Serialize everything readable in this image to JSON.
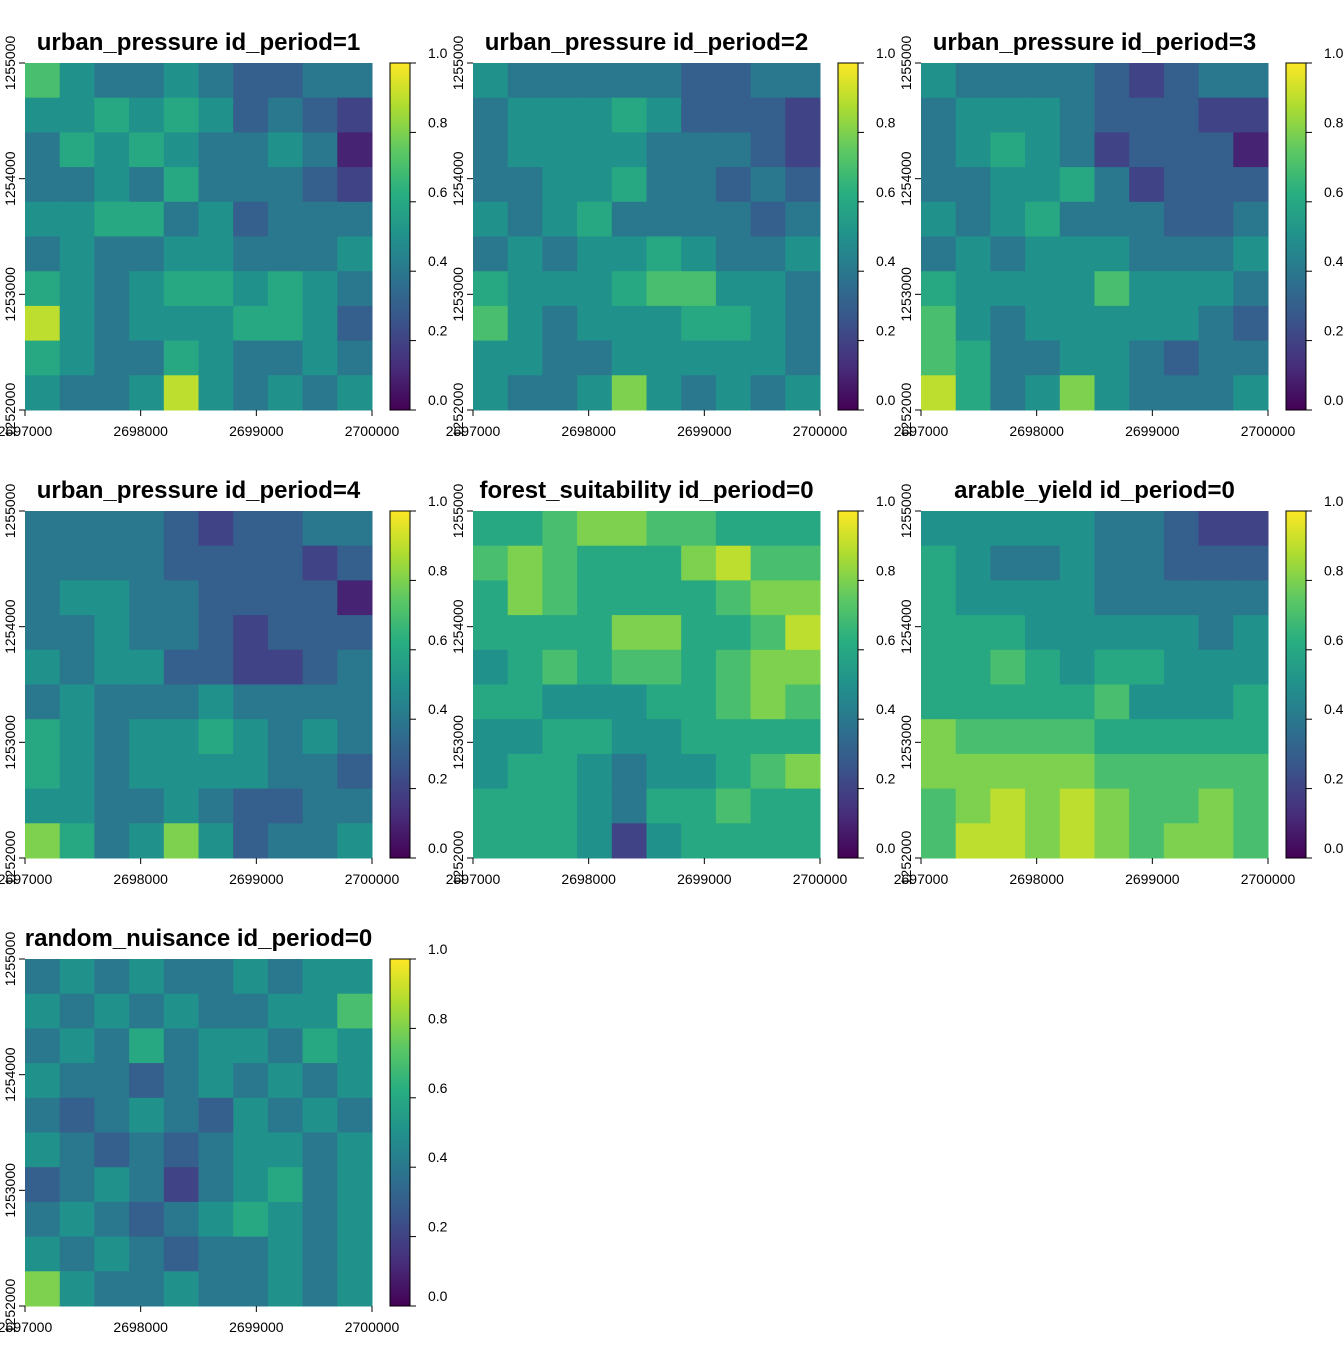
{
  "chart_data": [
    {
      "type": "heatmap",
      "title": "urban_pressure id_period=1",
      "colormap": "viridis",
      "xlim": [
        2697000,
        2700000
      ],
      "ylim": [
        1252000,
        1255000
      ],
      "xticks": [
        2697000,
        2698000,
        2699000,
        2700000
      ],
      "yticks": [
        1252000,
        1253000,
        1254000,
        1255000
      ],
      "zlim": [
        0,
        1
      ],
      "zticks": [
        {
          "value": 0,
          "label": "0.0"
        },
        0.2,
        0.4,
        0.6,
        0.8,
        {
          "value": 1,
          "label": "1.0"
        }
      ],
      "values": [
        [
          0.7,
          0.5,
          0.4,
          0.4,
          0.5,
          0.4,
          0.3,
          0.3,
          0.4,
          0.4
        ],
        [
          0.5,
          0.5,
          0.6,
          0.5,
          0.6,
          0.5,
          0.3,
          0.4,
          0.3,
          0.2
        ],
        [
          0.4,
          0.6,
          0.5,
          0.6,
          0.5,
          0.4,
          0.4,
          0.5,
          0.4,
          0.1
        ],
        [
          0.4,
          0.4,
          0.5,
          0.4,
          0.6,
          0.4,
          0.4,
          0.4,
          0.3,
          0.2
        ],
        [
          0.5,
          0.5,
          0.6,
          0.6,
          0.4,
          0.5,
          0.3,
          0.4,
          0.4,
          0.4
        ],
        [
          0.4,
          0.5,
          0.4,
          0.4,
          0.5,
          0.5,
          0.4,
          0.4,
          0.4,
          0.5
        ],
        [
          0.6,
          0.5,
          0.4,
          0.5,
          0.6,
          0.6,
          0.5,
          0.6,
          0.5,
          0.4
        ],
        [
          0.9,
          0.5,
          0.4,
          0.5,
          0.5,
          0.5,
          0.6,
          0.6,
          0.5,
          0.3
        ],
        [
          0.6,
          0.5,
          0.4,
          0.4,
          0.6,
          0.5,
          0.4,
          0.4,
          0.5,
          0.4
        ],
        [
          0.5,
          0.4,
          0.4,
          0.5,
          0.9,
          0.5,
          0.4,
          0.5,
          0.4,
          0.5
        ]
      ]
    },
    {
      "type": "heatmap",
      "title": "urban_pressure id_period=2",
      "colormap": "viridis",
      "xlim": [
        2697000,
        2700000
      ],
      "ylim": [
        1252000,
        1255000
      ],
      "xticks": [
        2697000,
        2698000,
        2699000,
        2700000
      ],
      "yticks": [
        1252000,
        1253000,
        1254000,
        1255000
      ],
      "zlim": [
        0,
        1
      ],
      "zticks": [
        {
          "value": 0,
          "label": "0.0"
        },
        0.2,
        0.4,
        0.6,
        0.8,
        {
          "value": 1,
          "label": "1.0"
        }
      ],
      "values": [
        [
          0.5,
          0.4,
          0.4,
          0.4,
          0.4,
          0.4,
          0.3,
          0.3,
          0.4,
          0.4
        ],
        [
          0.4,
          0.5,
          0.5,
          0.5,
          0.6,
          0.5,
          0.3,
          0.3,
          0.3,
          0.2
        ],
        [
          0.4,
          0.5,
          0.5,
          0.5,
          0.5,
          0.4,
          0.4,
          0.4,
          0.3,
          0.2
        ],
        [
          0.4,
          0.4,
          0.5,
          0.5,
          0.6,
          0.4,
          0.4,
          0.3,
          0.4,
          0.3
        ],
        [
          0.5,
          0.4,
          0.5,
          0.6,
          0.4,
          0.4,
          0.4,
          0.4,
          0.3,
          0.4
        ],
        [
          0.4,
          0.5,
          0.4,
          0.5,
          0.5,
          0.6,
          0.5,
          0.4,
          0.4,
          0.5
        ],
        [
          0.6,
          0.5,
          0.5,
          0.5,
          0.6,
          0.7,
          0.7,
          0.5,
          0.5,
          0.4
        ],
        [
          0.7,
          0.5,
          0.4,
          0.5,
          0.5,
          0.5,
          0.6,
          0.6,
          0.5,
          0.4
        ],
        [
          0.5,
          0.5,
          0.4,
          0.4,
          0.5,
          0.5,
          0.5,
          0.5,
          0.5,
          0.4
        ],
        [
          0.5,
          0.4,
          0.4,
          0.5,
          0.8,
          0.5,
          0.4,
          0.5,
          0.4,
          0.5
        ]
      ]
    },
    {
      "type": "heatmap",
      "title": "urban_pressure id_period=3",
      "colormap": "viridis",
      "xlim": [
        2697000,
        2700000
      ],
      "ylim": [
        1252000,
        1255000
      ],
      "xticks": [
        2697000,
        2698000,
        2699000,
        2700000
      ],
      "yticks": [
        1252000,
        1253000,
        1254000,
        1255000
      ],
      "zlim": [
        0,
        1
      ],
      "zticks": [
        {
          "value": 0,
          "label": "0.0"
        },
        0.2,
        0.4,
        0.6,
        0.8,
        {
          "value": 1,
          "label": "1.0"
        }
      ],
      "values": [
        [
          0.5,
          0.4,
          0.4,
          0.4,
          0.4,
          0.3,
          0.2,
          0.3,
          0.4,
          0.4
        ],
        [
          0.4,
          0.5,
          0.5,
          0.5,
          0.4,
          0.3,
          0.3,
          0.3,
          0.2,
          0.2
        ],
        [
          0.4,
          0.5,
          0.6,
          0.5,
          0.4,
          0.2,
          0.3,
          0.3,
          0.3,
          0.1
        ],
        [
          0.4,
          0.4,
          0.5,
          0.5,
          0.6,
          0.4,
          0.2,
          0.3,
          0.3,
          0.3
        ],
        [
          0.5,
          0.4,
          0.5,
          0.6,
          0.4,
          0.4,
          0.4,
          0.3,
          0.3,
          0.4
        ],
        [
          0.4,
          0.5,
          0.4,
          0.5,
          0.5,
          0.5,
          0.4,
          0.4,
          0.4,
          0.5
        ],
        [
          0.6,
          0.5,
          0.5,
          0.5,
          0.5,
          0.7,
          0.5,
          0.5,
          0.5,
          0.4
        ],
        [
          0.7,
          0.5,
          0.4,
          0.5,
          0.5,
          0.5,
          0.5,
          0.5,
          0.4,
          0.3
        ],
        [
          0.7,
          0.6,
          0.4,
          0.4,
          0.5,
          0.5,
          0.4,
          0.3,
          0.4,
          0.4
        ],
        [
          0.9,
          0.6,
          0.4,
          0.5,
          0.8,
          0.5,
          0.4,
          0.4,
          0.4,
          0.5
        ]
      ]
    },
    {
      "type": "heatmap",
      "title": "urban_pressure id_period=4",
      "colormap": "viridis",
      "xlim": [
        2697000,
        2700000
      ],
      "ylim": [
        1252000,
        1255000
      ],
      "xticks": [
        2697000,
        2698000,
        2699000,
        2700000
      ],
      "yticks": [
        1252000,
        1253000,
        1254000,
        1255000
      ],
      "zlim": [
        0,
        1
      ],
      "zticks": [
        {
          "value": 0,
          "label": "0.0"
        },
        0.2,
        0.4,
        0.6,
        0.8,
        {
          "value": 1,
          "label": "1.0"
        }
      ],
      "values": [
        [
          0.4,
          0.4,
          0.4,
          0.4,
          0.3,
          0.2,
          0.3,
          0.3,
          0.4,
          0.4
        ],
        [
          0.4,
          0.4,
          0.4,
          0.4,
          0.3,
          0.3,
          0.3,
          0.3,
          0.2,
          0.3
        ],
        [
          0.4,
          0.5,
          0.5,
          0.4,
          0.4,
          0.3,
          0.3,
          0.3,
          0.3,
          0.1
        ],
        [
          0.4,
          0.4,
          0.5,
          0.4,
          0.4,
          0.3,
          0.2,
          0.3,
          0.3,
          0.3
        ],
        [
          0.5,
          0.4,
          0.5,
          0.5,
          0.3,
          0.3,
          0.2,
          0.2,
          0.3,
          0.4
        ],
        [
          0.4,
          0.5,
          0.4,
          0.4,
          0.4,
          0.5,
          0.4,
          0.4,
          0.4,
          0.4
        ],
        [
          0.6,
          0.5,
          0.4,
          0.5,
          0.5,
          0.6,
          0.5,
          0.4,
          0.5,
          0.4
        ],
        [
          0.6,
          0.5,
          0.4,
          0.5,
          0.5,
          0.5,
          0.5,
          0.4,
          0.4,
          0.3
        ],
        [
          0.5,
          0.5,
          0.4,
          0.4,
          0.5,
          0.4,
          0.3,
          0.3,
          0.4,
          0.4
        ],
        [
          0.8,
          0.6,
          0.4,
          0.5,
          0.8,
          0.5,
          0.3,
          0.4,
          0.4,
          0.5
        ]
      ]
    },
    {
      "type": "heatmap",
      "title": "forest_suitability id_period=0",
      "colormap": "viridis",
      "xlim": [
        2697000,
        2700000
      ],
      "ylim": [
        1252000,
        1255000
      ],
      "xticks": [
        2697000,
        2698000,
        2699000,
        2700000
      ],
      "yticks": [
        1252000,
        1253000,
        1254000,
        1255000
      ],
      "zlim": [
        0,
        1
      ],
      "zticks": [
        {
          "value": 0,
          "label": "0.0"
        },
        0.2,
        0.4,
        0.6,
        0.8,
        {
          "value": 1,
          "label": "1.0"
        }
      ],
      "values": [
        [
          0.6,
          0.6,
          0.7,
          0.8,
          0.8,
          0.7,
          0.7,
          0.6,
          0.6,
          0.6
        ],
        [
          0.7,
          0.8,
          0.7,
          0.6,
          0.6,
          0.6,
          0.8,
          0.9,
          0.7,
          0.7
        ],
        [
          0.6,
          0.8,
          0.7,
          0.6,
          0.6,
          0.6,
          0.6,
          0.7,
          0.8,
          0.8
        ],
        [
          0.6,
          0.6,
          0.6,
          0.6,
          0.8,
          0.8,
          0.6,
          0.6,
          0.7,
          0.9
        ],
        [
          0.5,
          0.6,
          0.7,
          0.6,
          0.7,
          0.7,
          0.6,
          0.7,
          0.8,
          0.8
        ],
        [
          0.6,
          0.6,
          0.5,
          0.5,
          0.5,
          0.6,
          0.6,
          0.7,
          0.8,
          0.7
        ],
        [
          0.5,
          0.5,
          0.6,
          0.6,
          0.5,
          0.5,
          0.6,
          0.6,
          0.6,
          0.6
        ],
        [
          0.5,
          0.6,
          0.6,
          0.5,
          0.4,
          0.5,
          0.5,
          0.6,
          0.7,
          0.8
        ],
        [
          0.6,
          0.6,
          0.6,
          0.5,
          0.4,
          0.6,
          0.6,
          0.7,
          0.6,
          0.6
        ],
        [
          0.6,
          0.6,
          0.6,
          0.5,
          0.2,
          0.5,
          0.6,
          0.6,
          0.6,
          0.6
        ]
      ]
    },
    {
      "type": "heatmap",
      "title": "arable_yield id_period=0",
      "colormap": "viridis",
      "xlim": [
        2697000,
        2700000
      ],
      "ylim": [
        1252000,
        1255000
      ],
      "xticks": [
        2697000,
        2698000,
        2699000,
        2700000
      ],
      "yticks": [
        1252000,
        1253000,
        1254000,
        1255000
      ],
      "zlim": [
        0,
        1
      ],
      "zticks": [
        {
          "value": 0,
          "label": "0.0"
        },
        0.2,
        0.4,
        0.6,
        0.8,
        {
          "value": 1,
          "label": "1.0"
        }
      ],
      "values": [
        [
          0.5,
          0.5,
          0.5,
          0.5,
          0.5,
          0.4,
          0.4,
          0.3,
          0.2,
          0.2
        ],
        [
          0.6,
          0.5,
          0.4,
          0.4,
          0.5,
          0.4,
          0.4,
          0.3,
          0.3,
          0.3
        ],
        [
          0.6,
          0.5,
          0.5,
          0.5,
          0.5,
          0.4,
          0.4,
          0.4,
          0.4,
          0.4
        ],
        [
          0.6,
          0.6,
          0.6,
          0.5,
          0.5,
          0.5,
          0.5,
          0.5,
          0.4,
          0.5
        ],
        [
          0.6,
          0.6,
          0.7,
          0.6,
          0.5,
          0.6,
          0.6,
          0.5,
          0.5,
          0.5
        ],
        [
          0.6,
          0.6,
          0.6,
          0.6,
          0.6,
          0.7,
          0.5,
          0.5,
          0.5,
          0.6
        ],
        [
          0.8,
          0.7,
          0.7,
          0.7,
          0.7,
          0.6,
          0.6,
          0.6,
          0.6,
          0.6
        ],
        [
          0.8,
          0.8,
          0.8,
          0.8,
          0.8,
          0.7,
          0.7,
          0.7,
          0.7,
          0.7
        ],
        [
          0.7,
          0.8,
          0.9,
          0.8,
          0.9,
          0.8,
          0.7,
          0.7,
          0.8,
          0.7
        ],
        [
          0.7,
          0.9,
          0.9,
          0.8,
          0.9,
          0.8,
          0.7,
          0.8,
          0.8,
          0.7
        ]
      ]
    },
    {
      "type": "heatmap",
      "title": "random_nuisance id_period=0",
      "colormap": "viridis",
      "xlim": [
        2697000,
        2700000
      ],
      "ylim": [
        1252000,
        1255000
      ],
      "xticks": [
        2697000,
        2698000,
        2699000,
        2700000
      ],
      "yticks": [
        1252000,
        1253000,
        1254000,
        1255000
      ],
      "zlim": [
        0,
        1
      ],
      "zticks": [
        {
          "value": 0,
          "label": "0.0"
        },
        0.2,
        0.4,
        0.6,
        0.8,
        {
          "value": 1,
          "label": "1.0"
        }
      ],
      "values": [
        [
          0.4,
          0.5,
          0.4,
          0.5,
          0.4,
          0.4,
          0.5,
          0.4,
          0.5,
          0.5
        ],
        [
          0.5,
          0.4,
          0.5,
          0.4,
          0.5,
          0.4,
          0.4,
          0.5,
          0.5,
          0.7
        ],
        [
          0.4,
          0.5,
          0.4,
          0.6,
          0.4,
          0.5,
          0.5,
          0.4,
          0.6,
          0.5
        ],
        [
          0.5,
          0.4,
          0.4,
          0.3,
          0.4,
          0.5,
          0.4,
          0.5,
          0.4,
          0.5
        ],
        [
          0.4,
          0.3,
          0.4,
          0.5,
          0.4,
          0.3,
          0.5,
          0.4,
          0.5,
          0.4
        ],
        [
          0.5,
          0.4,
          0.3,
          0.4,
          0.3,
          0.4,
          0.5,
          0.5,
          0.4,
          0.5
        ],
        [
          0.3,
          0.4,
          0.5,
          0.4,
          0.2,
          0.4,
          0.5,
          0.6,
          0.4,
          0.5
        ],
        [
          0.4,
          0.5,
          0.4,
          0.3,
          0.4,
          0.5,
          0.6,
          0.5,
          0.4,
          0.5
        ],
        [
          0.5,
          0.4,
          0.5,
          0.4,
          0.3,
          0.4,
          0.4,
          0.5,
          0.4,
          0.5
        ],
        [
          0.8,
          0.5,
          0.4,
          0.4,
          0.5,
          0.4,
          0.4,
          0.5,
          0.4,
          0.5
        ]
      ]
    }
  ]
}
